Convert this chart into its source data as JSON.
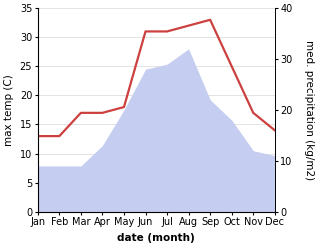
{
  "months": [
    "Jan",
    "Feb",
    "Mar",
    "Apr",
    "May",
    "Jun",
    "Jul",
    "Aug",
    "Sep",
    "Oct",
    "Nov",
    "Dec"
  ],
  "temperature": [
    13,
    13,
    17,
    17,
    18,
    31,
    31,
    32,
    33,
    25,
    17,
    14
  ],
  "precipitation": [
    9,
    9,
    9,
    13,
    20,
    28,
    29,
    32,
    22,
    18,
    12,
    11
  ],
  "temp_color": "#cd4040",
  "precip_fill_color": "#c5cdf0",
  "left_ylim": [
    0,
    35
  ],
  "right_ylim": [
    0,
    40
  ],
  "left_yticks": [
    0,
    5,
    10,
    15,
    20,
    25,
    30,
    35
  ],
  "right_yticks": [
    0,
    10,
    20,
    30,
    40
  ],
  "xlabel": "date (month)",
  "ylabel_left": "max temp (C)",
  "ylabel_right": "med. precipitation (kg/m2)",
  "axis_label_fontsize": 7.5,
  "tick_fontsize": 7,
  "line_width": 1.6,
  "background_color": "#ffffff",
  "grid_color": "#d8d8d8"
}
